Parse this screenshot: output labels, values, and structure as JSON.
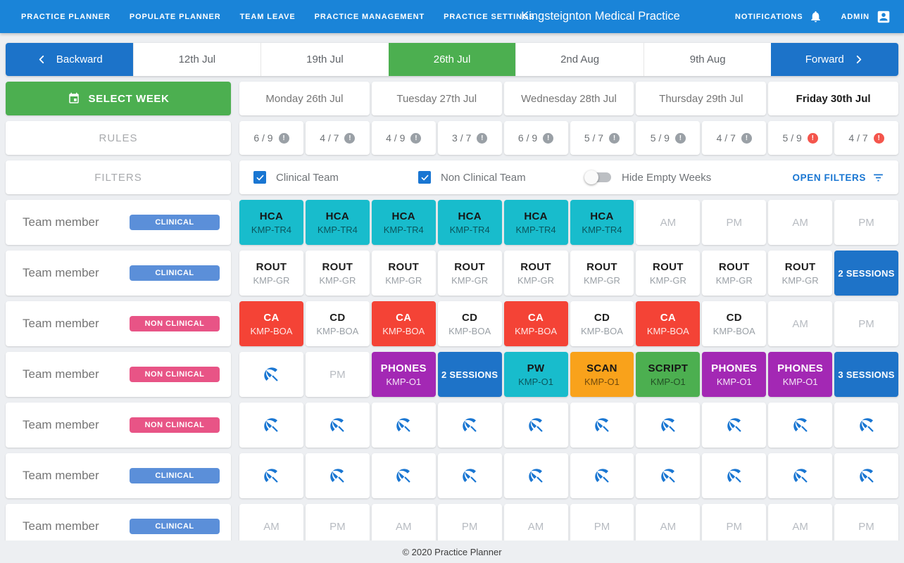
{
  "colors": {
    "accent_blue": "#1A84D8",
    "button_blue": "#1C73C9",
    "selected_green": "#4CAF50",
    "clinical_badge": "#5B8FD9",
    "non_clinical_badge": "#E85486",
    "cell_cyan": "#18BCCC",
    "cell_red": "#F44336",
    "cell_purple": "#A328B4",
    "cell_orange": "#F9A21B",
    "cell_green": "#4CAF50",
    "sessions_blue": "#1E73C8",
    "leave_icon_blue": "#1976D2",
    "alert_red": "#F4554C"
  },
  "icons": {
    "backward": "chevron-left",
    "forward": "chevron-right",
    "select_week": "calendar",
    "notifications": "bell",
    "admin": "person-box",
    "rule_status": "exclamation-circle",
    "open_filters": "filter-lines",
    "leave": "beach-umbrella",
    "checkbox": "checkmark"
  },
  "navbar": {
    "links": [
      "PRACTICE PLANNER",
      "POPULATE PLANNER",
      "TEAM LEAVE",
      "PRACTICE MANAGEMENT",
      "PRACTICE SETTINGS"
    ],
    "title": "Kingsteignton Medical Practice",
    "notifications_label": "NOTIFICATIONS",
    "admin_label": "ADMIN"
  },
  "week_nav": {
    "backward_label": "Backward",
    "forward_label": "Forward",
    "weeks": [
      {
        "label": "12th Jul",
        "selected": false
      },
      {
        "label": "19th Jul",
        "selected": false
      },
      {
        "label": "26th Jul",
        "selected": true
      },
      {
        "label": "2nd Aug",
        "selected": false
      },
      {
        "label": "9th Aug",
        "selected": false
      }
    ]
  },
  "planner": {
    "select_week_label": "SELECT WEEK",
    "days": [
      {
        "label": "Monday 26th Jul",
        "today": false
      },
      {
        "label": "Tuesday 27th Jul",
        "today": false
      },
      {
        "label": "Wednesday 28th Jul",
        "today": false
      },
      {
        "label": "Thursday 29th Jul",
        "today": false
      },
      {
        "label": "Friday 30th Jul",
        "today": true
      }
    ],
    "rules_label": "RULES",
    "rules": [
      {
        "value": "6 / 9",
        "alert": false
      },
      {
        "value": "4 / 7",
        "alert": false
      },
      {
        "value": "4 / 9",
        "alert": false
      },
      {
        "value": "3 / 7",
        "alert": false
      },
      {
        "value": "6 / 9",
        "alert": false
      },
      {
        "value": "5 / 7",
        "alert": false
      },
      {
        "value": "5 / 9",
        "alert": false
      },
      {
        "value": "4 / 7",
        "alert": false
      },
      {
        "value": "5 / 9",
        "alert": true
      },
      {
        "value": "4 / 7",
        "alert": true
      }
    ],
    "filters_label": "FILTERS",
    "filters": {
      "clinical_label": "Clinical Team",
      "clinical_checked": true,
      "non_clinical_label": "Non Clinical Team",
      "non_clinical_checked": true,
      "hide_empty_label": "Hide Empty Weeks",
      "hide_empty_on": false,
      "open_filters_label": "OPEN FILTERS"
    },
    "rows": [
      {
        "name": "Team member",
        "badge": "CLINICAL",
        "badge_type": "clinical",
        "cells": [
          {
            "type": "shift",
            "title": "HCA",
            "subtitle": "KMP-TR4",
            "color": "cyan"
          },
          {
            "type": "shift",
            "title": "HCA",
            "subtitle": "KMP-TR4",
            "color": "cyan"
          },
          {
            "type": "shift",
            "title": "HCA",
            "subtitle": "KMP-TR4",
            "color": "cyan"
          },
          {
            "type": "shift",
            "title": "HCA",
            "subtitle": "KMP-TR4",
            "color": "cyan"
          },
          {
            "type": "shift",
            "title": "HCA",
            "subtitle": "KMP-TR4",
            "color": "cyan"
          },
          {
            "type": "shift",
            "title": "HCA",
            "subtitle": "KMP-TR4",
            "color": "cyan"
          },
          {
            "type": "empty",
            "label": "AM"
          },
          {
            "type": "empty",
            "label": "PM"
          },
          {
            "type": "empty",
            "label": "AM"
          },
          {
            "type": "empty",
            "label": "PM"
          }
        ]
      },
      {
        "name": "Team member",
        "badge": "CLINICAL",
        "badge_type": "clinical",
        "cells": [
          {
            "type": "shift",
            "title": "ROUT",
            "subtitle": "KMP-GR",
            "color": "white"
          },
          {
            "type": "shift",
            "title": "ROUT",
            "subtitle": "KMP-GR",
            "color": "white"
          },
          {
            "type": "shift",
            "title": "ROUT",
            "subtitle": "KMP-GR",
            "color": "white"
          },
          {
            "type": "shift",
            "title": "ROUT",
            "subtitle": "KMP-GR",
            "color": "white"
          },
          {
            "type": "shift",
            "title": "ROUT",
            "subtitle": "KMP-GR",
            "color": "white"
          },
          {
            "type": "shift",
            "title": "ROUT",
            "subtitle": "KMP-GR",
            "color": "white"
          },
          {
            "type": "shift",
            "title": "ROUT",
            "subtitle": "KMP-GR",
            "color": "white"
          },
          {
            "type": "shift",
            "title": "ROUT",
            "subtitle": "KMP-GR",
            "color": "white"
          },
          {
            "type": "shift",
            "title": "ROUT",
            "subtitle": "KMP-GR",
            "color": "white"
          },
          {
            "type": "sessions",
            "label": "2 SESSIONS"
          }
        ]
      },
      {
        "name": "Team member",
        "badge": "NON CLINICAL",
        "badge_type": "non_clinical",
        "cells": [
          {
            "type": "shift",
            "title": "CA",
            "subtitle": "KMP-BOA",
            "color": "red"
          },
          {
            "type": "shift",
            "title": "CD",
            "subtitle": "KMP-BOA",
            "color": "white"
          },
          {
            "type": "shift",
            "title": "CA",
            "subtitle": "KMP-BOA",
            "color": "red"
          },
          {
            "type": "shift",
            "title": "CD",
            "subtitle": "KMP-BOA",
            "color": "white"
          },
          {
            "type": "shift",
            "title": "CA",
            "subtitle": "KMP-BOA",
            "color": "red"
          },
          {
            "type": "shift",
            "title": "CD",
            "subtitle": "KMP-BOA",
            "color": "white"
          },
          {
            "type": "shift",
            "title": "CA",
            "subtitle": "KMP-BOA",
            "color": "red"
          },
          {
            "type": "shift",
            "title": "CD",
            "subtitle": "KMP-BOA",
            "color": "white"
          },
          {
            "type": "empty",
            "label": "AM"
          },
          {
            "type": "empty",
            "label": "PM"
          }
        ]
      },
      {
        "name": "Team member",
        "badge": "NON CLINICAL",
        "badge_type": "non_clinical",
        "cells": [
          {
            "type": "leave"
          },
          {
            "type": "empty",
            "label": "PM"
          },
          {
            "type": "shift",
            "title": "PHONES",
            "subtitle": "KMP-O1",
            "color": "purple"
          },
          {
            "type": "sessions",
            "label": "2 SESSIONS"
          },
          {
            "type": "shift",
            "title": "PW",
            "subtitle": "KMP-O1",
            "color": "cyan"
          },
          {
            "type": "shift",
            "title": "SCAN",
            "subtitle": "KMP-O1",
            "color": "orange"
          },
          {
            "type": "shift",
            "title": "SCRIPT",
            "subtitle": "KMP-O1",
            "color": "green"
          },
          {
            "type": "shift",
            "title": "PHONES",
            "subtitle": "KMP-O1",
            "color": "purple"
          },
          {
            "type": "shift",
            "title": "PHONES",
            "subtitle": "KMP-O1",
            "color": "purple"
          },
          {
            "type": "sessions",
            "label": "3 SESSIONS"
          }
        ]
      },
      {
        "name": "Team member",
        "badge": "NON CLINICAL",
        "badge_type": "non_clinical",
        "cells": [
          {
            "type": "leave"
          },
          {
            "type": "leave"
          },
          {
            "type": "leave"
          },
          {
            "type": "leave"
          },
          {
            "type": "leave"
          },
          {
            "type": "leave"
          },
          {
            "type": "leave"
          },
          {
            "type": "leave"
          },
          {
            "type": "leave"
          },
          {
            "type": "leave"
          }
        ]
      },
      {
        "name": "Team member",
        "badge": "CLINICAL",
        "badge_type": "clinical",
        "cells": [
          {
            "type": "leave"
          },
          {
            "type": "leave"
          },
          {
            "type": "leave"
          },
          {
            "type": "leave"
          },
          {
            "type": "leave"
          },
          {
            "type": "leave"
          },
          {
            "type": "leave"
          },
          {
            "type": "leave"
          },
          {
            "type": "leave"
          },
          {
            "type": "leave"
          }
        ]
      },
      {
        "name": "Team member",
        "badge": "CLINICAL",
        "badge_type": "clinical",
        "cells": [
          {
            "type": "empty",
            "label": "AM"
          },
          {
            "type": "empty",
            "label": "PM"
          },
          {
            "type": "empty",
            "label": "AM"
          },
          {
            "type": "empty",
            "label": "PM"
          },
          {
            "type": "empty",
            "label": "AM"
          },
          {
            "type": "empty",
            "label": "PM"
          },
          {
            "type": "empty",
            "label": "AM"
          },
          {
            "type": "empty",
            "label": "PM"
          },
          {
            "type": "empty",
            "label": "AM"
          },
          {
            "type": "empty",
            "label": "PM"
          }
        ]
      }
    ]
  },
  "footer": {
    "copyright": "© 2020 Practice Planner"
  }
}
